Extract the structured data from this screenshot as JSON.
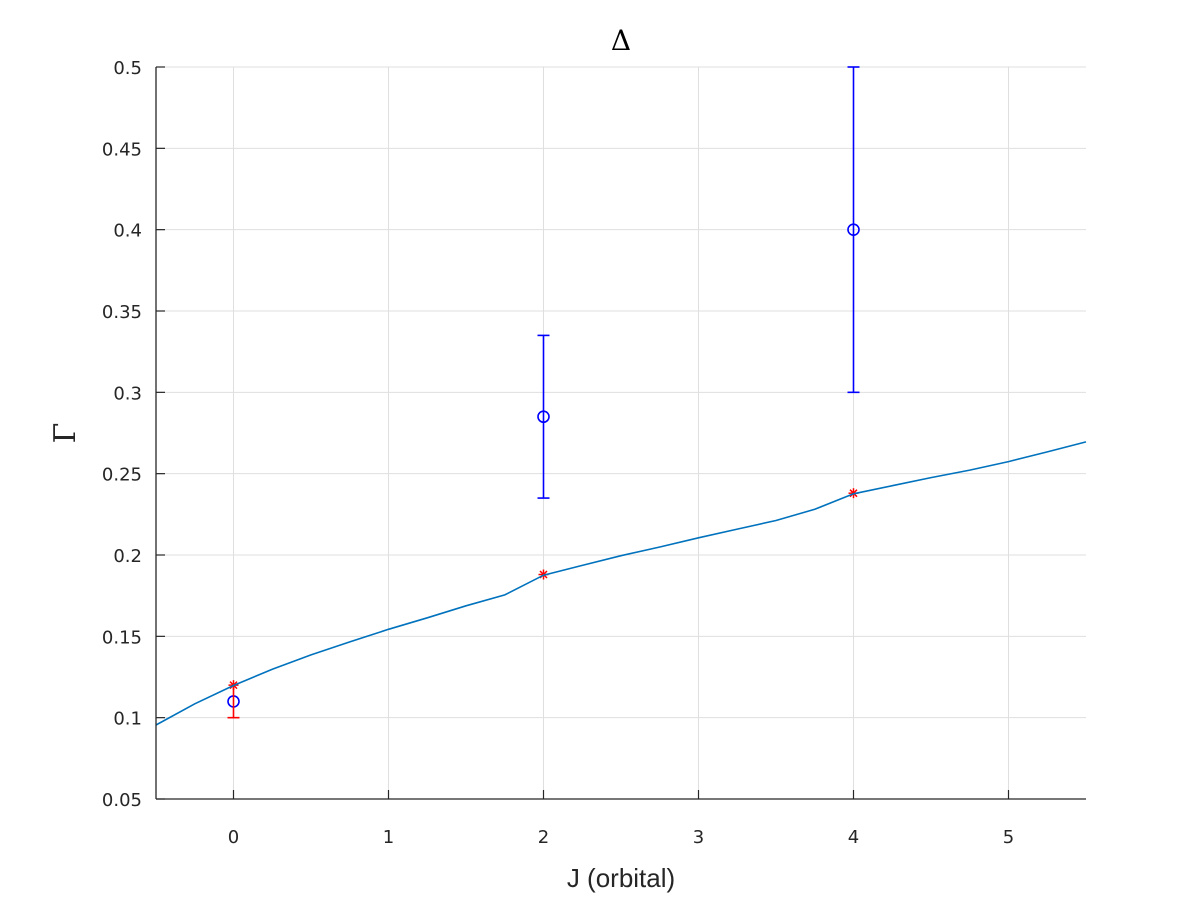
{
  "chart_data": {
    "type": "scatter",
    "title": "Δ",
    "xlabel": "J (orbital)",
    "ylabel": "Γ",
    "xlim": [
      -0.5,
      5.5
    ],
    "ylim": [
      0.05,
      0.5
    ],
    "xticks": [
      0,
      1,
      2,
      3,
      4,
      5
    ],
    "xtick_labels": [
      "0",
      "1",
      "2",
      "3",
      "4",
      "5"
    ],
    "yticks": [
      0.05,
      0.1,
      0.15,
      0.2,
      0.25,
      0.3,
      0.35,
      0.4,
      0.45,
      0.5
    ],
    "ytick_labels": [
      "0.05",
      "0.1",
      "0.15",
      "0.2",
      "0.25",
      "0.3",
      "0.35",
      "0.4",
      "0.45",
      "0.5"
    ],
    "grid": true,
    "series": [
      {
        "kind": "errorbar",
        "marker": "circle",
        "color": "#0000ff",
        "x": [
          0,
          2,
          4
        ],
        "y": [
          0.11,
          0.285,
          0.4
        ],
        "err_low": [
          0.0,
          0.05,
          0.1
        ],
        "err_high": [
          0.0,
          0.05,
          0.1
        ]
      },
      {
        "kind": "errorbar",
        "marker": "asterisk",
        "color": "#ff0000",
        "x": [
          0,
          2,
          4
        ],
        "y": [
          0.12,
          0.188,
          0.238
        ],
        "err_low": [
          0.02,
          0.0,
          0.0
        ],
        "err_high": [
          0.0,
          0.0,
          0.0
        ]
      },
      {
        "kind": "line",
        "color": "#0072bd",
        "x": [
          -0.5,
          -0.25,
          0,
          0.25,
          0.5,
          0.75,
          1,
          1.25,
          1.5,
          1.75,
          2,
          2.25,
          2.5,
          2.75,
          3,
          3.25,
          3.5,
          3.75,
          4,
          4.25,
          4.5,
          4.75,
          5,
          5.25,
          5.5
        ],
        "y": [
          0.0955,
          0.1085,
          0.1198,
          0.1298,
          0.1386,
          0.1466,
          0.1543,
          0.1614,
          0.1688,
          0.1755,
          0.1876,
          0.1936,
          0.1996,
          0.2049,
          0.2106,
          0.2159,
          0.2212,
          0.2281,
          0.2376,
          0.2426,
          0.2476,
          0.2522,
          0.2574,
          0.2634,
          0.2695
        ]
      }
    ]
  }
}
